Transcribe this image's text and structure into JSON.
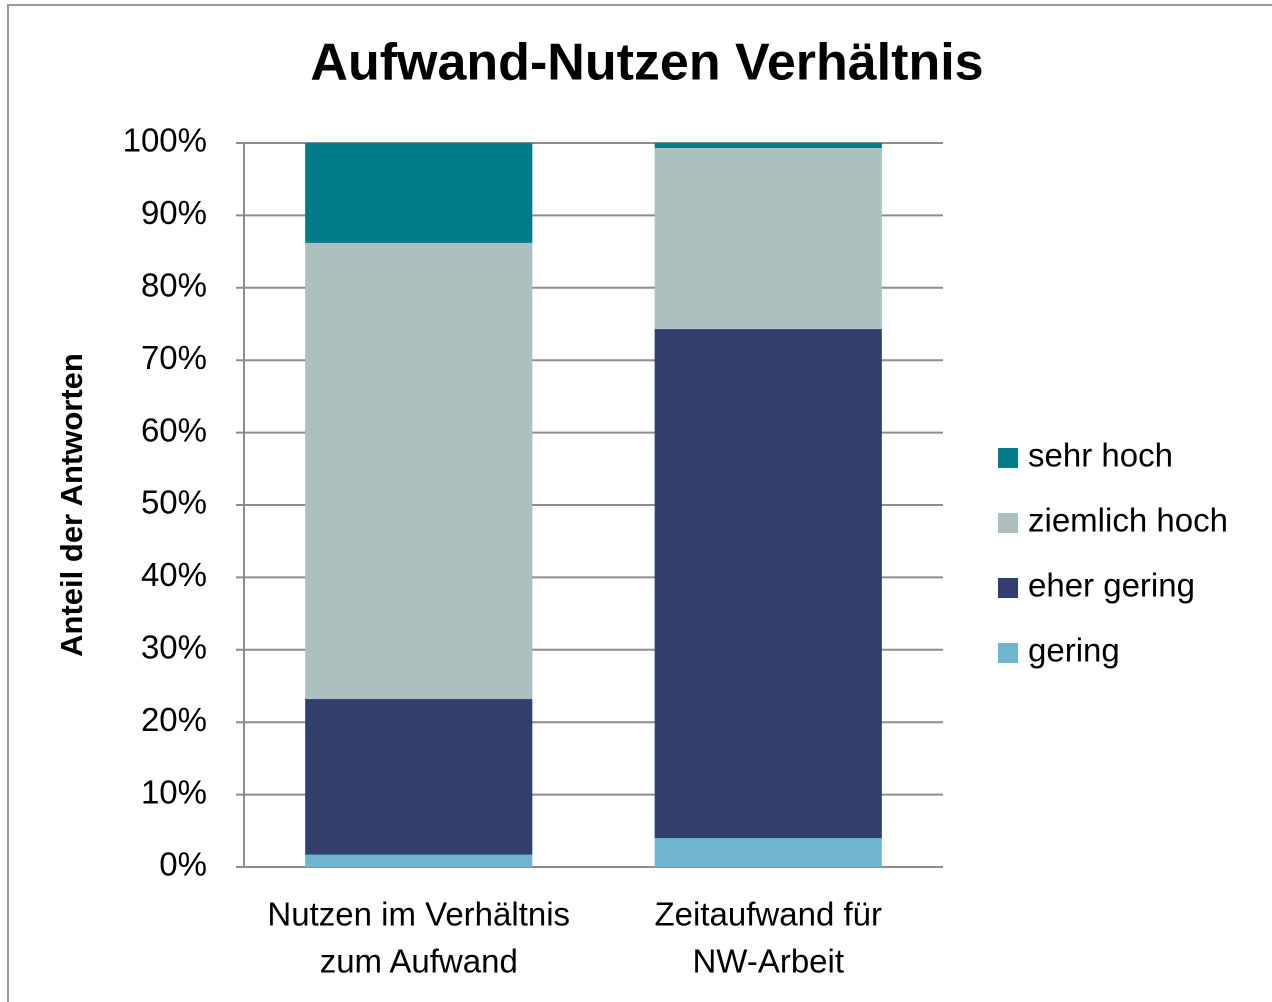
{
  "chart_data": {
    "type": "stacked_bar",
    "title": "Aufwand-Nutzen Verhältnis",
    "y_label": "Anteil der Antworten",
    "categories": [
      [
        "Nutzen im Verhältnis",
        "zum Aufwand"
      ],
      [
        "Zeitaufwand für",
        "NW-Arbeit"
      ]
    ],
    "series": [
      {
        "name": "gering",
        "color": "#6fb5cf",
        "values": [
          1.7,
          4.0
        ]
      },
      {
        "name": "eher gering",
        "color": "#303f6b",
        "values": [
          21.5,
          70.3
        ]
      },
      {
        "name": "ziemlich hoch",
        "color": "#adbfbf",
        "values": [
          63.0,
          25.0
        ]
      },
      {
        "name": "sehr hoch",
        "color": "#007b87",
        "values": [
          13.8,
          0.7
        ]
      }
    ],
    "ylim": [
      0,
      100
    ],
    "yticks": [
      {
        "value": 0,
        "label": "0%"
      },
      {
        "value": 10,
        "label": "10%"
      },
      {
        "value": 20,
        "label": "20%"
      },
      {
        "value": 30,
        "label": "30%"
      },
      {
        "value": 40,
        "label": "40%"
      },
      {
        "value": 50,
        "label": "50%"
      },
      {
        "value": 60,
        "label": "60%"
      },
      {
        "value": 70,
        "label": "70%"
      },
      {
        "value": 80,
        "label": "80%"
      },
      {
        "value": 90,
        "label": "90%"
      },
      {
        "value": 100,
        "label": "100%"
      }
    ],
    "grid": true,
    "legend": "right"
  }
}
